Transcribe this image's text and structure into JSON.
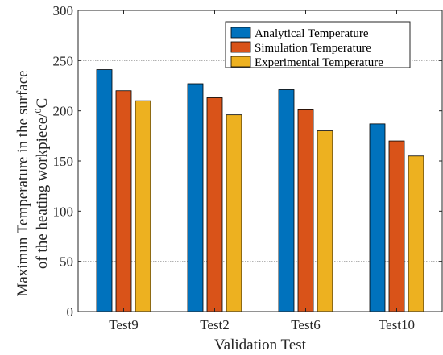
{
  "chart_data": {
    "type": "bar",
    "categories": [
      "Test9",
      "Test2",
      "Test6",
      "Test10"
    ],
    "series": [
      {
        "name": "Analytical Temperature",
        "color": "#0072BD",
        "values": [
          241,
          227,
          221,
          187
        ]
      },
      {
        "name": "Simulation Temperature",
        "color": "#D95319",
        "values": [
          220,
          213,
          201,
          170
        ]
      },
      {
        "name": "Experimental Temperature",
        "color": "#EDB120",
        "values": [
          210,
          196,
          180,
          155
        ]
      }
    ],
    "xlabel": "Validation Test",
    "ylabel_line1": "Maximun Temperature in the surface",
    "ylabel_line2_prefix": "of the heating workpiece/",
    "ylabel_unit_sup": "0",
    "ylabel_unit": "C",
    "ylim": [
      0,
      300
    ],
    "yticks": [
      0,
      50,
      100,
      150,
      200,
      250,
      300
    ],
    "grid_lines_at": [
      50,
      250
    ],
    "legend_position": "top-right"
  }
}
